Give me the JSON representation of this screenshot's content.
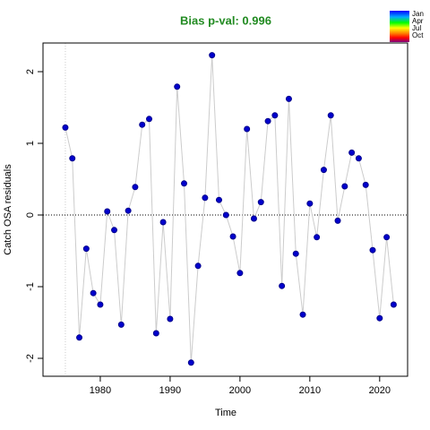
{
  "chart_data": {
    "type": "line",
    "title": "Bias p-val: 0.996",
    "title_color": "#228b22",
    "x_label": "Time",
    "y_label": "Catch OSA residuals",
    "x": [
      1975,
      1976,
      1977,
      1978,
      1979,
      1980,
      1981,
      1982,
      1983,
      1984,
      1985,
      1986,
      1987,
      1988,
      1989,
      1990,
      1991,
      1992,
      1993,
      1994,
      1995,
      1996,
      1997,
      1998,
      1999,
      2000,
      2001,
      2002,
      2003,
      2004,
      2005,
      2006,
      2007,
      2008,
      2009,
      2010,
      2011,
      2012,
      2013,
      2014,
      2015,
      2016,
      2017,
      2018,
      2019,
      2020,
      2021,
      2022
    ],
    "series": [
      {
        "name": "Catch OSA residuals",
        "color": "#0000cd",
        "line_color": "#cccccc",
        "values": [
          1.22,
          0.79,
          -1.71,
          -0.47,
          -1.09,
          -1.25,
          0.05,
          -0.21,
          -1.53,
          0.06,
          0.39,
          1.26,
          1.34,
          -1.65,
          -0.1,
          -1.45,
          1.79,
          0.44,
          -2.06,
          -0.71,
          0.24,
          2.23,
          0.21,
          0.0,
          -0.3,
          -0.81,
          1.2,
          -0.05,
          0.18,
          1.31,
          1.39,
          -0.99,
          1.62,
          -0.54,
          -1.39,
          0.16,
          -0.31,
          0.63,
          1.39,
          -0.08,
          0.4,
          0.87,
          0.79,
          0.42,
          -0.49,
          -1.44,
          -0.31,
          -1.25
        ]
      }
    ],
    "xlim": [
      1971.8,
      2024.0
    ],
    "ylim": [
      -2.25,
      2.4
    ],
    "xticks": [
      1980,
      1990,
      2000,
      2010,
      2020
    ],
    "yticks": [
      -2,
      -1,
      0,
      1,
      2
    ],
    "hline": 0,
    "vline": 1975,
    "legend_labels": [
      "Jan",
      "Apr",
      "Jul",
      "Oct"
    ]
  }
}
